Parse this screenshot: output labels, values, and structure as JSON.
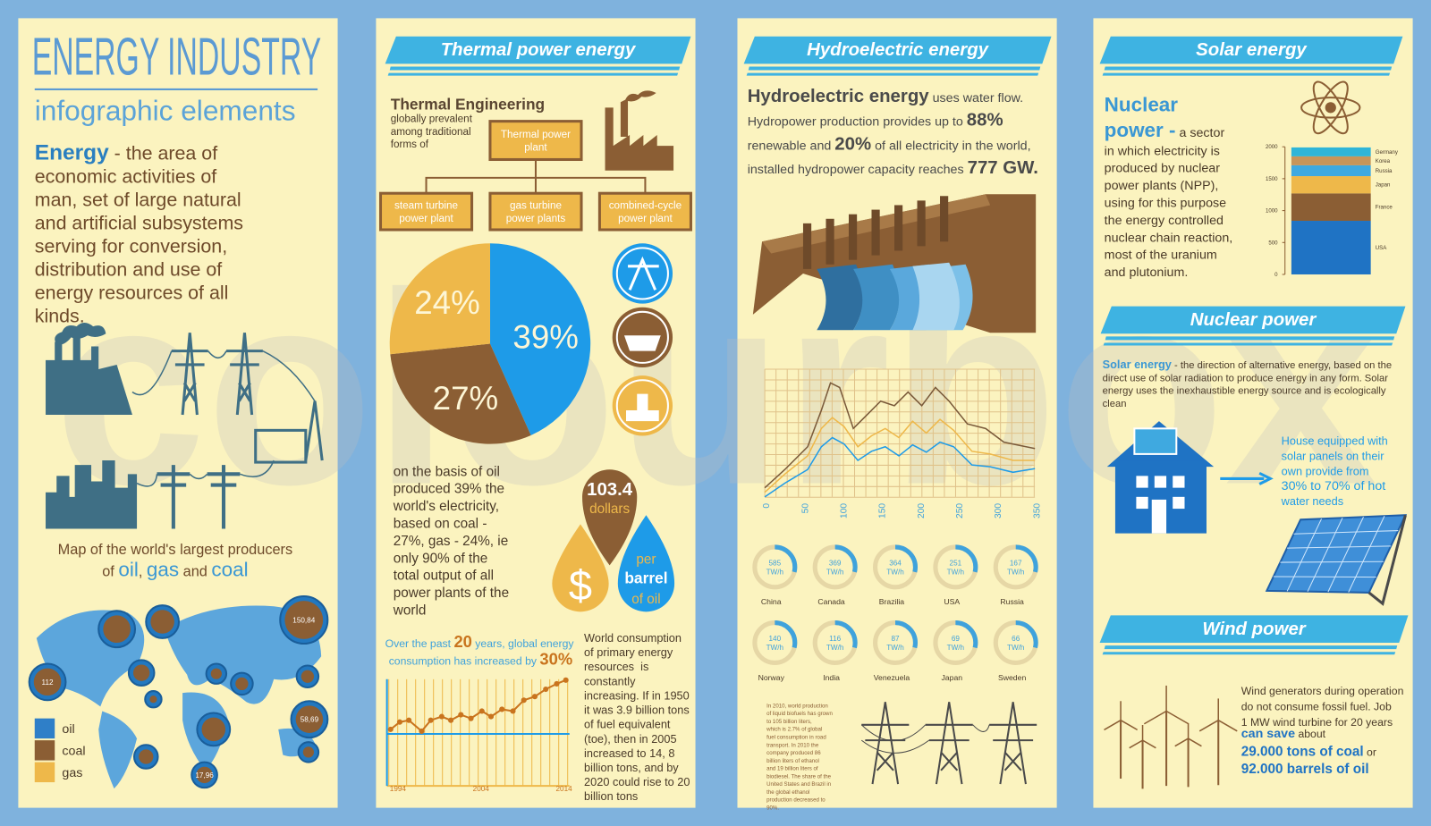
{
  "watermark": "colourbox",
  "panel1": {
    "title": "ENERGY INDUSTRY",
    "subtitle": "infographic elements",
    "lead": "Energy",
    "text_lines": [
      " - the area of",
      "economic activities of",
      "man, set of large natural",
      "and artificial subsystems",
      "serving for conversion,",
      "distribution and use of",
      "energy resources of all",
      "kinds."
    ],
    "map_caption": "Map of the world's largest producers",
    "map_caption_parts": [
      "of ",
      "oil",
      ", ",
      "gas",
      " and ",
      "coal"
    ],
    "map_values": [
      "112",
      "150,84",
      "17,96",
      "58,69"
    ],
    "legend": [
      "oil",
      "coal",
      "gas"
    ]
  },
  "panel2": {
    "header": "Thermal power energy",
    "heading": "Thermal Engineering",
    "heading_lines": [
      "globally prevalent",
      "among traditional",
      "forms of"
    ],
    "plant_box": [
      "Thermal power",
      "plant"
    ],
    "plant_types": [
      [
        "steam turbine",
        "power plant"
      ],
      [
        "gas turbine",
        "power plants"
      ],
      [
        "combined-cycle",
        "power plant"
      ]
    ],
    "pie": {
      "type": "pie",
      "values": [
        39,
        27,
        24
      ],
      "value_labels": [
        "39%",
        "27%",
        "24%"
      ],
      "colors": [
        "#1e9be8",
        "#8b5e34",
        "#eeb84a"
      ]
    },
    "text_lines": [
      "on the basis of oil",
      "produced 39% the",
      "world's electricity,",
      "based on coal -",
      "27%, gas - 24%, ie",
      "only 90% of the",
      "total output of all",
      "power plants of the",
      "world"
    ],
    "price": "103.4",
    "price_unit": "dollars",
    "currency": "$",
    "per_barrel": [
      "per",
      "barrel",
      "of oil"
    ],
    "growth_caption_1": [
      "Over the past ",
      "20",
      " years, global energy"
    ],
    "growth_caption_2": [
      "consumption has increased by ",
      "30%"
    ],
    "growth_years": [
      "1994",
      "2004",
      "2014"
    ],
    "consumption_lines": [
      "World consumption",
      "of primary energy",
      "resources  is",
      "constantly",
      "increasing. If in 1950",
      "it was 3.9 billion tons",
      "of fuel equivalent",
      "(toe), then in 2005",
      "increased to 14, 8",
      "billion tons, and by",
      "2020 could rise to 20",
      "billion tons"
    ]
  },
  "panel3": {
    "header": "Hydroelectric energy",
    "intro": [
      [
        "Hydroelectric energy",
        " uses water flow."
      ],
      [
        "Hydropower production provides up to ",
        "88%"
      ],
      [
        "renewable and ",
        "20%",
        " of all electricity in the world,"
      ],
      [
        "installed hydropower capacity reaches ",
        "777 GW."
      ]
    ],
    "xticks": [
      0,
      50,
      100,
      150,
      200,
      250,
      300,
      350
    ],
    "unit": "TW/h",
    "producers": [
      {
        "value": 585,
        "country": "China"
      },
      {
        "value": 369,
        "country": "Canada"
      },
      {
        "value": 364,
        "country": "Brazilia"
      },
      {
        "value": 251,
        "country": "USA"
      },
      {
        "value": 167,
        "country": "Russia"
      },
      {
        "value": 140,
        "country": "Norway"
      },
      {
        "value": 116,
        "country": "India"
      },
      {
        "value": 87,
        "country": "Venezuela"
      },
      {
        "value": 69,
        "country": "Japan"
      },
      {
        "value": 66,
        "country": "Sweden"
      }
    ],
    "biofuel_lines": [
      "In 2010, world production",
      "of liquid biofuels has grown",
      "to 105 billion liters,",
      "which is 2.7% of global",
      "fuel consumption in road",
      "transport. In 2010 the",
      "company produced 86",
      "billion liters of ethanol",
      "and 19 billion liters of",
      "biodiesel. The share of the",
      "United States and Brazil in",
      "the global ethanol",
      "production decreased to",
      "90%."
    ]
  },
  "panel4": {
    "header": "Solar energy",
    "nuclear_title": [
      "Nuclear",
      "power -"
    ],
    "nuclear_lead": " a sector",
    "nuclear_lines": [
      "in which electricity is",
      "produced by nuclear",
      "power plants (NPP),",
      "using for this purpose",
      "the energy controlled",
      "nuclear chain reaction,",
      "most of the uranium",
      "and plutonium."
    ],
    "reactor_chart": {
      "type": "stacked-bar",
      "ylim": [
        0,
        2000
      ],
      "yticks": [
        0,
        500,
        1000,
        1500,
        2000
      ],
      "series": [
        {
          "name": "USA",
          "color": "#1f73c4",
          "values": [
            840
          ]
        },
        {
          "name": "France",
          "color": "#8b5e34",
          "values": [
            430
          ]
        },
        {
          "name": "Japan",
          "color": "#eeb84a",
          "values": [
            270
          ]
        },
        {
          "name": "Russia",
          "color": "#3fa9e0",
          "values": [
            170
          ]
        },
        {
          "name": "Korea",
          "color": "#c7955a",
          "values": [
            140
          ]
        },
        {
          "name": "Germany",
          "color": "#2fb5d8",
          "values": [
            140
          ]
        }
      ]
    },
    "header2": "Nuclear power",
    "solar_lead": "Solar energy",
    "solar_lines": [
      " - the direction of alternative energy, based on the",
      "direct use of solar radiation to produce energy in any form. Solar",
      "energy uses the inexhaustible energy source and is ecologically",
      "clean"
    ],
    "house_lines": [
      "House equipped with",
      "solar panels on their",
      "own provide from",
      "30% to 70% of hot",
      "water needs"
    ],
    "header3": "Wind power",
    "wind_lines": [
      "Wind generators during operation",
      "do not consume fossil fuel. Job",
      "1 MW wind turbine for 20 years"
    ],
    "wind_save": [
      "can save",
      " about"
    ],
    "wind_coal": [
      "29.000 tons of coal",
      " or"
    ],
    "wind_oil": "92.000 barrels of oil"
  }
}
